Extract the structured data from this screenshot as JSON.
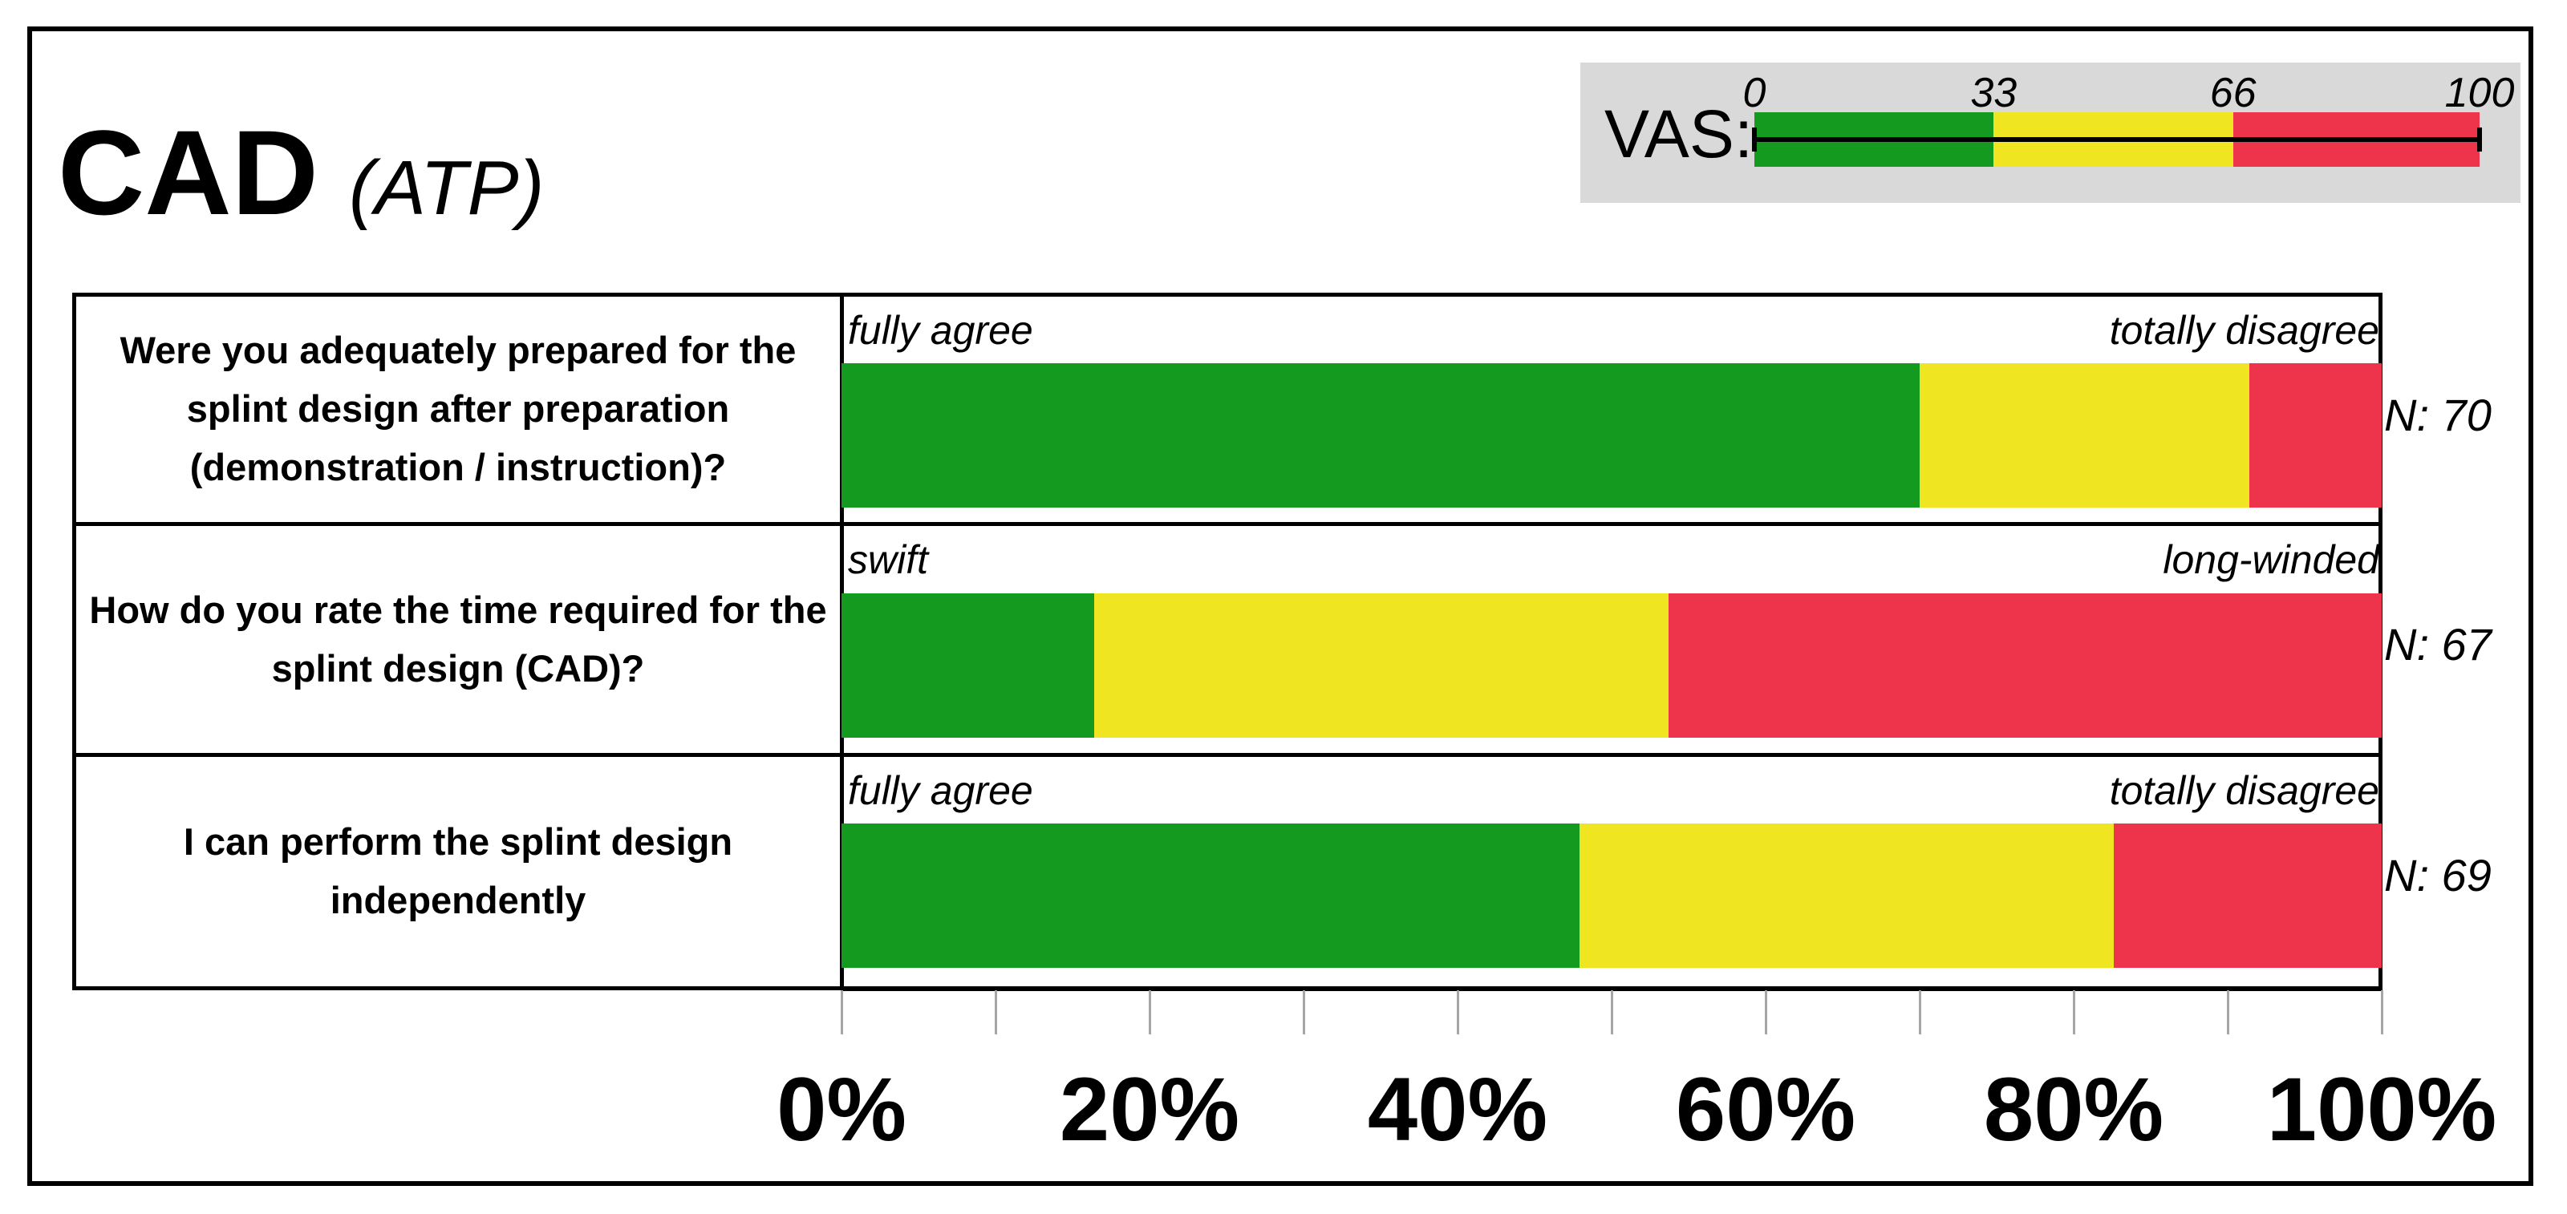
{
  "chart_data": {
    "type": "bar",
    "orientation": "horizontal",
    "stacked": true,
    "title": "CAD",
    "subtitle": "(ATP)",
    "categories": [
      "Were you adequately prepared for the splint design after preparation (demonstration / instruction)?",
      "How do you rate the time required for the splint design (CAD)?",
      "I can perform the splint design independently"
    ],
    "series": [
      {
        "name": "0-33",
        "color": "#139a1f",
        "values": [
          70,
          16.4,
          47.9
        ]
      },
      {
        "name": "33-66",
        "color": "#efe520",
        "values": [
          21.4,
          37.3,
          34.7
        ]
      },
      {
        "name": "66-100",
        "color": "#ee344a",
        "values": [
          8.6,
          46.3,
          17.4
        ]
      }
    ],
    "anchors": [
      {
        "left": "fully agree",
        "right": "totally disagree"
      },
      {
        "left": "swift",
        "right": "long-winded"
      },
      {
        "left": "fully agree",
        "right": "totally disagree"
      }
    ],
    "n_labels": [
      "N: 70",
      "N: 67",
      "N: 69"
    ],
    "xlim": [
      0,
      100
    ],
    "x_ticks": [
      0,
      20,
      40,
      60,
      80,
      100
    ],
    "x_minor_ticks": [
      10,
      30,
      50,
      70,
      90
    ],
    "x_tick_labels": [
      "0%",
      "20%",
      "40%",
      "60%",
      "80%",
      "100%"
    ],
    "legend": {
      "label": "VAS:",
      "position": "top-right",
      "ticks": [
        "0",
        "33",
        "66",
        "100"
      ],
      "range_values": [
        0,
        33,
        66,
        100
      ],
      "colors": [
        "#139a1f",
        "#efe520",
        "#ee344a"
      ]
    }
  }
}
